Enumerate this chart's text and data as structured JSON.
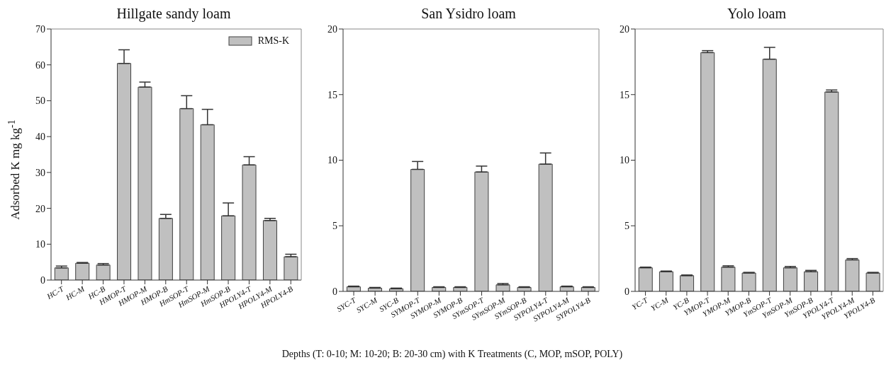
{
  "chart_data": [
    {
      "type": "bar",
      "title": "Hillgate sandy loam",
      "ylabel": "Adsorbed K mg kg$^{-1}$",
      "categories": [
        "HC-T",
        "HC-M",
        "HC-B",
        "HMOP-T",
        "HMOP-M",
        "HMOP-B",
        "HmSOP-T",
        "HmSOP-M",
        "HmSOP-B",
        "HPOLY4-T",
        "HPOLY4-M",
        "HPOLY4-B"
      ],
      "series": [
        {
          "name": "RMS-K",
          "color": "#c0c0c0",
          "values": [
            3.4,
            4.7,
            4.2,
            60.4,
            53.8,
            17.2,
            47.8,
            43.3,
            17.9,
            32.1,
            16.6,
            6.5
          ],
          "errors": [
            [
              3.4,
              3.9
            ],
            [
              4.7,
              4.9
            ],
            [
              4.2,
              4.6
            ],
            [
              60.4,
              64.2
            ],
            [
              53.8,
              55.2
            ],
            [
              17.2,
              18.3
            ],
            [
              47.8,
              51.4
            ],
            [
              43.3,
              47.6
            ],
            [
              17.9,
              21.5
            ],
            [
              32.1,
              34.4
            ],
            [
              16.6,
              17.2
            ],
            [
              6.5,
              7.2
            ]
          ]
        }
      ],
      "ylim": [
        0,
        70
      ],
      "yticks": [
        0,
        10,
        20,
        30,
        40,
        50,
        60,
        70
      ],
      "grid": false,
      "legend": "top right"
    },
    {
      "type": "bar",
      "title": "San Ysidro loam",
      "xlabel": "Depths (T: 0-10; M: 10-20; B: 20-30 cm) with K Treatments (C, MOP, mSOP, POLY)",
      "categories": [
        "SYC-T",
        "SYC-M",
        "SYC-B",
        "SYMOP-T",
        "SYMOP-M",
        "SYMOP-B",
        "SYmSOP-T",
        "SYmSOP-M",
        "SYmSOP-B",
        "SYPOLY4-T",
        "SYPOLY4-M",
        "SYPOLY4-B"
      ],
      "series": [
        {
          "color": "#c0c0c0",
          "values": [
            0.35,
            0.25,
            0.2,
            9.3,
            0.3,
            0.3,
            9.1,
            0.5,
            0.3,
            9.7,
            0.35,
            0.3
          ],
          "errors": [
            [
              0.35,
              0.4
            ],
            [
              0.25,
              0.3
            ],
            [
              0.2,
              0.25
            ],
            [
              9.3,
              9.9
            ],
            [
              0.3,
              0.35
            ],
            [
              0.3,
              0.35
            ],
            [
              9.1,
              9.55
            ],
            [
              0.5,
              0.6
            ],
            [
              0.3,
              0.35
            ],
            [
              9.7,
              10.55
            ],
            [
              0.35,
              0.4
            ],
            [
              0.3,
              0.35
            ]
          ]
        }
      ],
      "ylim": [
        0,
        20
      ],
      "yticks": [
        0,
        5,
        10,
        15,
        20
      ],
      "grid": false,
      "legend": false
    },
    {
      "type": "bar",
      "title": "Yolo loam",
      "categories": [
        "YC-T",
        "YC-M",
        "YC-B",
        "YMOP-T",
        "YMOP-M",
        "YMOP-B",
        "YmSOP-T",
        "YmSOP-M",
        "YmSOP-B",
        "YPOLY4-T",
        "YPOLY4-M",
        "YPOLY4-B"
      ],
      "series": [
        {
          "color": "#c0c0c0",
          "values": [
            1.8,
            1.5,
            1.2,
            18.2,
            1.85,
            1.4,
            17.7,
            1.8,
            1.5,
            15.2,
            2.4,
            1.4
          ],
          "errors": [
            [
              1.8,
              1.85
            ],
            [
              1.5,
              1.55
            ],
            [
              1.2,
              1.25
            ],
            [
              18.2,
              18.35
            ],
            [
              1.85,
              1.95
            ],
            [
              1.4,
              1.45
            ],
            [
              17.7,
              18.6
            ],
            [
              1.8,
              1.9
            ],
            [
              1.5,
              1.6
            ],
            [
              15.2,
              15.35
            ],
            [
              2.4,
              2.5
            ],
            [
              1.4,
              1.45
            ]
          ]
        }
      ],
      "ylim": [
        0,
        20
      ],
      "yticks": [
        0,
        5,
        10,
        15,
        20
      ],
      "grid": false,
      "legend": false
    }
  ]
}
